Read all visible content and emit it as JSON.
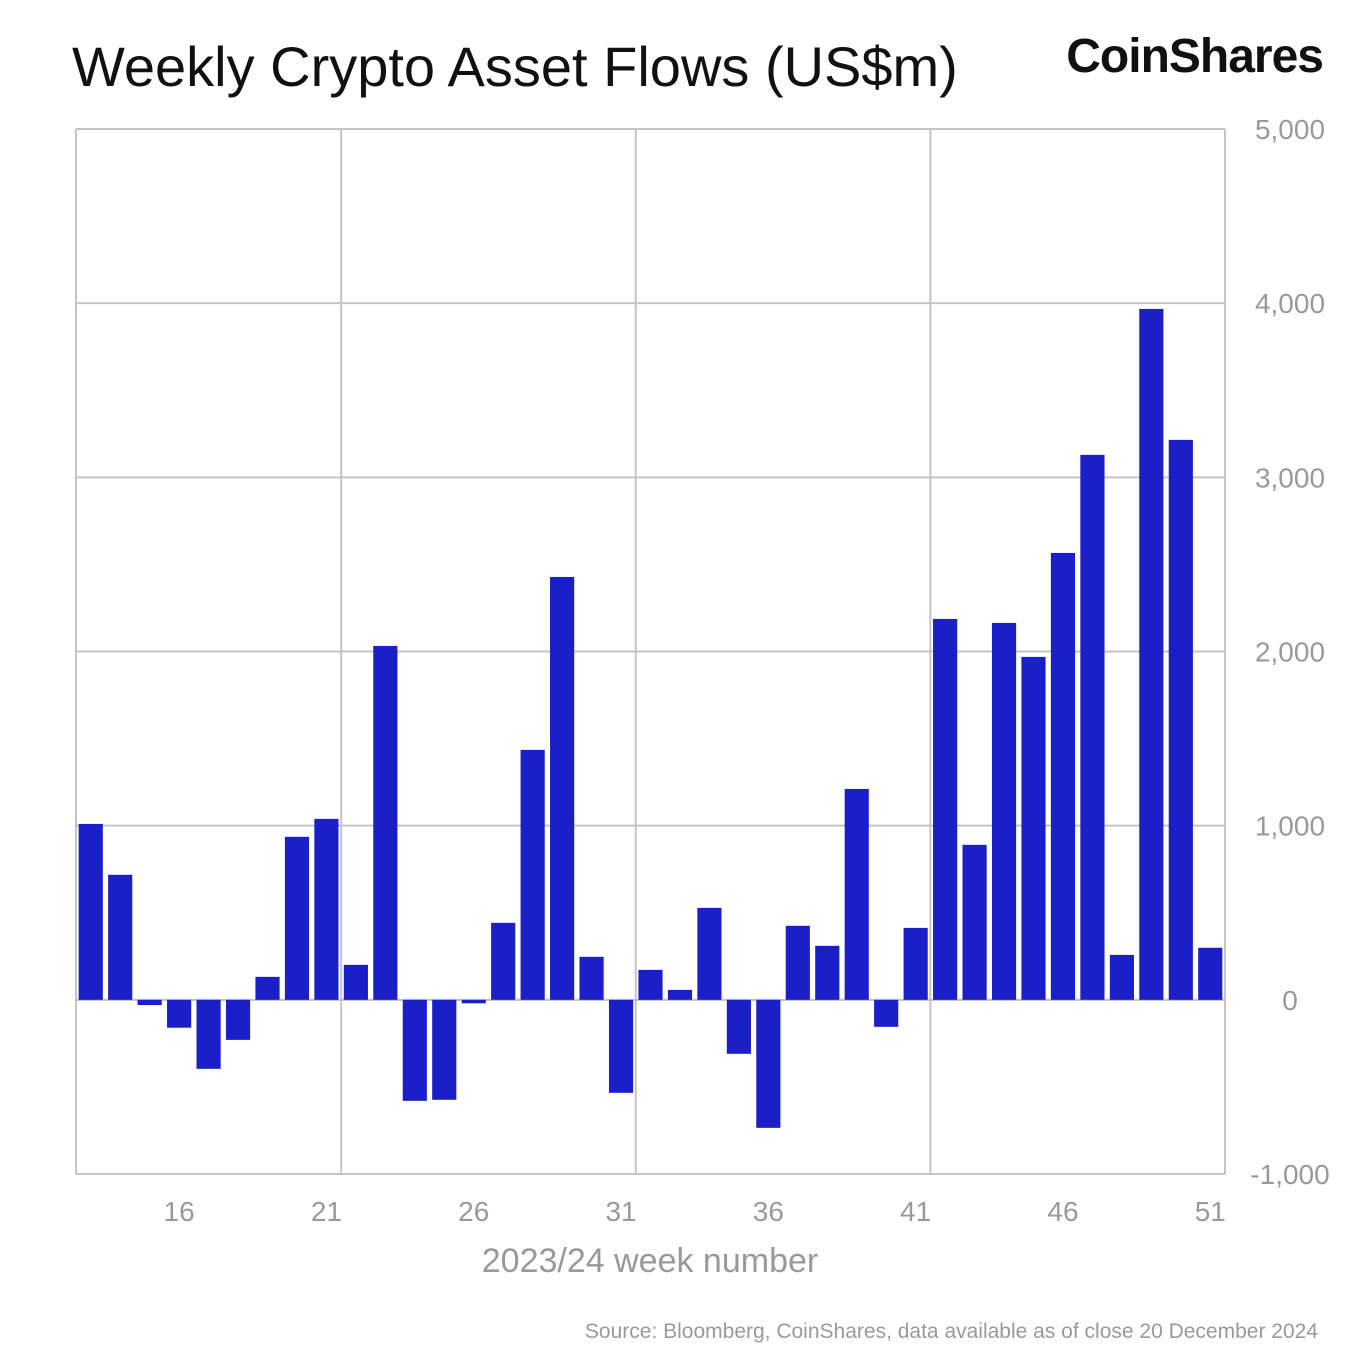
{
  "chart_data": {
    "type": "bar",
    "title": "Weekly Crypto Asset Flows (US$m)",
    "logo": "CoinShares",
    "xlabel": "2023/24 week number",
    "ylabel": "",
    "source": "Source: Bloomberg, CoinShares, data available as of close 20 December 2024",
    "x": [
      13,
      14,
      15,
      16,
      17,
      18,
      19,
      20,
      21,
      22,
      23,
      24,
      25,
      26,
      27,
      28,
      29,
      30,
      31,
      32,
      33,
      34,
      35,
      36,
      37,
      38,
      39,
      40,
      41,
      42,
      43,
      44,
      45,
      46,
      47,
      48,
      49,
      50,
      51
    ],
    "values": [
      1010,
      718,
      -30,
      -160,
      -396,
      -230,
      132,
      936,
      1039,
      201,
      2032,
      -580,
      -574,
      -20,
      442,
      1435,
      2428,
      247,
      -534,
      172,
      57,
      528,
      -310,
      -735,
      425,
      310,
      1211,
      -155,
      413,
      2187,
      890,
      2164,
      1969,
      2566,
      3129,
      258,
      3967,
      3215,
      299
    ],
    "xticks": [
      16,
      21,
      26,
      31,
      36,
      41,
      46,
      51
    ],
    "yticks": [
      -1000,
      0,
      1000,
      2000,
      3000,
      4000,
      5000
    ],
    "ytick_labels": [
      "-1,000",
      "0",
      "1,000",
      "2,000",
      "3,000",
      "4,000",
      "5,000"
    ],
    "xlim": [
      12.5,
      51.5
    ],
    "ylim": [
      -1000,
      5000
    ],
    "y_axis_position": "right",
    "grid": true,
    "bar_color": "#1a1fc8",
    "grid_color": "#c4c4c4"
  }
}
